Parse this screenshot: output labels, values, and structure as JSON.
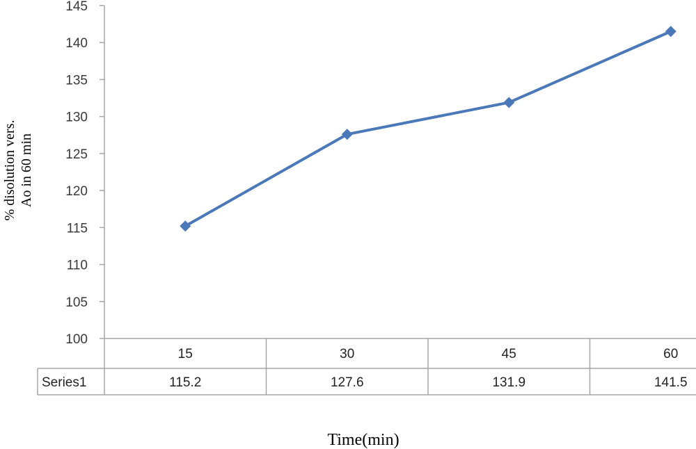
{
  "chart_data": {
    "type": "line",
    "title": "",
    "xlabel": "Time(min)",
    "ylabel_lines": [
      "% disolution vers.",
      "Ao in 60 min"
    ],
    "categories": [
      "15",
      "30",
      "45",
      "60"
    ],
    "series": [
      {
        "name": "Series1",
        "values": [
          115.2,
          127.6,
          131.9,
          141.5
        ],
        "value_labels": [
          "115.2",
          "127.6",
          "131.9",
          "141.5"
        ]
      }
    ],
    "ylim": [
      100,
      145
    ],
    "yticks": [
      {
        "value": 100,
        "label": "100"
      },
      {
        "value": 105,
        "label": "105"
      },
      {
        "value": 110,
        "label": "110"
      },
      {
        "value": 115,
        "label": "115"
      },
      {
        "value": 120,
        "label": "120"
      },
      {
        "value": 125,
        "label": "125"
      },
      {
        "value": 130,
        "label": "130"
      },
      {
        "value": 135,
        "label": "135"
      },
      {
        "value": 140,
        "label": "140"
      },
      {
        "value": 145,
        "label": "145"
      }
    ],
    "grid": false,
    "legend": "data-table",
    "colors": {
      "series": "#4a78b8",
      "axis": "#a6a6a6",
      "text": "#3a3a3a"
    }
  }
}
